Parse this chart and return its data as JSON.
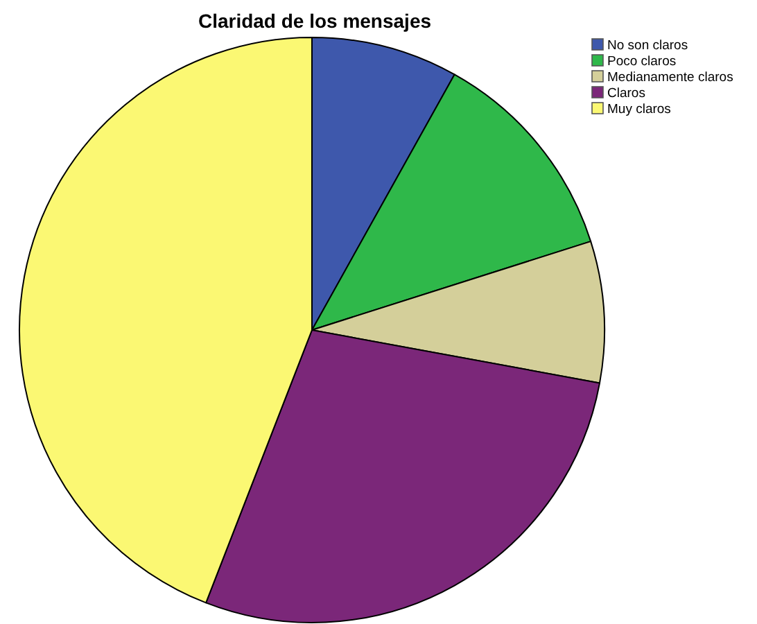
{
  "chart_data": {
    "type": "pie",
    "title": "Claridad de los mensajes",
    "categories": [
      "No son claros",
      "Poco claros",
      "Medianamente claros",
      "Claros",
      "Muy claros"
    ],
    "values": [
      8.1,
      12.0,
      7.8,
      28.0,
      44.1
    ],
    "colors": [
      "#3e58ac",
      "#2fb84a",
      "#d4cf9a",
      "#7b2779",
      "#fbf873"
    ],
    "legend": "top right"
  }
}
